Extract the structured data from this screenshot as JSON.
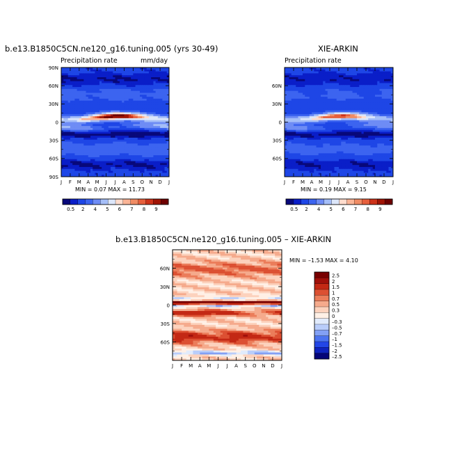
{
  "chart_data": [
    {
      "type": "heatmap",
      "title": "b.e13.B1850C5CN.ne120_g16.tuning.005 (yrs 30-49)",
      "subtitle_left": "Precipitation rate",
      "subtitle_right": "mm/day",
      "x_tick_labels": [
        "J",
        "F",
        "M",
        "A",
        "M",
        "J",
        "J",
        "A",
        "S",
        "O",
        "N",
        "D",
        "J"
      ],
      "y_tick_labels": [
        "90N",
        "60N",
        "30N",
        "0",
        "30S",
        "60S",
        "90S"
      ],
      "min_max_text": "MIN =   0.07 MAX =  11.73",
      "colorbar_labels": [
        "0.5",
        "2",
        "4",
        "5",
        "6",
        "7",
        "8",
        "9"
      ]
    },
    {
      "type": "heatmap",
      "title": "XIE-ARKIN",
      "subtitle_left": "Precipitation rate",
      "x_tick_labels": [
        "J",
        "F",
        "M",
        "A",
        "M",
        "J",
        "J",
        "A",
        "S",
        "O",
        "N",
        "D",
        "J"
      ],
      "y_tick_labels": [
        "60N",
        "30N",
        "0",
        "30S",
        "60S"
      ],
      "min_max_text": "MIN =   0.19 MAX =   9.15",
      "colorbar_labels": [
        "0.5",
        "2",
        "4",
        "5",
        "6",
        "7",
        "8",
        "9"
      ]
    },
    {
      "type": "heatmap",
      "title": "b.e13.B1850C5CN.ne120_g16.tuning.005  –  XIE-ARKIN",
      "x_tick_labels": [
        "J",
        "F",
        "M",
        "A",
        "M",
        "J",
        "J",
        "A",
        "S",
        "O",
        "N",
        "D",
        "J"
      ],
      "y_tick_labels": [
        "60N",
        "30N",
        "0",
        "30S",
        "60S"
      ],
      "min_max_text": "MIN =  –1.53 MAX =   4.10",
      "colorbar_labels": [
        "2.5",
        "2",
        "1.5",
        "1",
        "0.7",
        "0.5",
        "0.3",
        "0",
        "–0.3",
        "–0.5",
        "–0.7",
        "–1",
        "–1.5",
        "–2",
        "–2.5"
      ]
    }
  ],
  "colors": {
    "precip_scale": [
      "#08087a",
      "#0a1ec8",
      "#1e46e6",
      "#3c64f0",
      "#6e8cf5",
      "#a5bef8",
      "#dce6fa",
      "#ffdccd",
      "#fab496",
      "#f08c64",
      "#e65f3c",
      "#cd3219",
      "#a01405",
      "#6e0000"
    ],
    "diff_scale": [
      "#050578",
      "#0f23be",
      "#2346e6",
      "#4b73f0",
      "#82a0f5",
      "#b9cdfa",
      "#e1ebfc",
      "#fff0e6",
      "#fcd2bd",
      "#f5aa8c",
      "#eb7d5a",
      "#dc5032",
      "#c32814",
      "#a0100a",
      "#780000"
    ]
  }
}
